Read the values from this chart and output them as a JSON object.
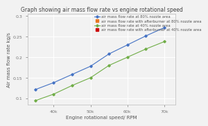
{
  "title": "Graph showing air mass flow rate vs engine rotational speed",
  "xlabel": "Engine rotational speed/ RPM",
  "ylabel": "Air mass flow rate kg/s",
  "x_values": [
    35000,
    40000,
    45000,
    50000,
    55000,
    60000,
    65000,
    70000
  ],
  "blue_line": {
    "label": "air mass flow rate at 80% nozzle area",
    "color": "#4472C4",
    "marker": "D",
    "markersize": 1.8,
    "y_values": [
      0.121,
      0.138,
      0.158,
      0.178,
      0.208,
      0.23,
      0.252,
      0.272
    ]
  },
  "orange_marker": {
    "label": "air mass flow rate with afterburner at 80% nozzle area",
    "color": "#E87722",
    "marker": "s"
  },
  "green_line": {
    "label": "air mass flow rate at 40% nozzle area",
    "color": "#70AD47",
    "marker": "D",
    "markersize": 1.8,
    "y_values": [
      0.094,
      0.11,
      0.131,
      0.15,
      0.18,
      0.2,
      0.22,
      0.238
    ]
  },
  "red_marker": {
    "label": "air mass flow rate with afterburner at 40% nozzle area",
    "color": "#CC0000",
    "marker": "s"
  },
  "xlim": [
    33000,
    73000
  ],
  "ylim": [
    0.085,
    0.305
  ],
  "xticks": [
    40000,
    50000,
    60000,
    70000
  ],
  "xtick_labels": [
    "40k",
    "50k",
    "60k",
    "70k"
  ],
  "yticks": [
    0.1,
    0.15,
    0.2,
    0.25,
    0.3
  ],
  "ytick_labels": [
    "0.1",
    "0.15",
    "0.2",
    "0.25",
    "0.3"
  ],
  "background_color": "#f2f2f2",
  "plot_bg_color": "#f2f2f2",
  "grid_color": "#ffffff",
  "title_fontsize": 5.5,
  "label_fontsize": 5.0,
  "tick_fontsize": 4.5,
  "legend_fontsize": 3.8
}
